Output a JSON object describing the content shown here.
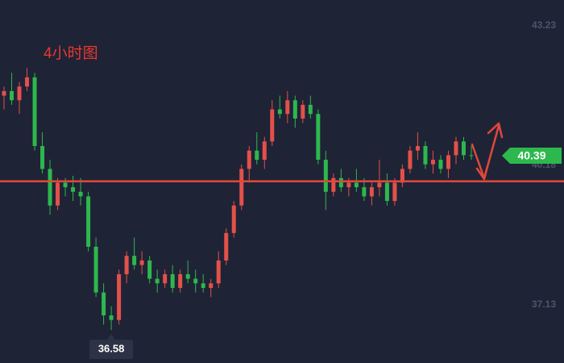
{
  "chart_data": {
    "type": "candlestick",
    "annotation": "4小时图",
    "ylim": [
      35.86,
      43.79
    ],
    "yticks": [
      43.23,
      40.18,
      37.13
    ],
    "level": 39.83,
    "level_color": "#e0483c",
    "up_color": "#e2514a",
    "down_color": "#2db84d",
    "last_price": 40.39,
    "low_label": 36.58,
    "low_index": 14,
    "open": [
      41.7,
      41.8,
      41.6,
      41.9,
      42.1,
      40.6,
      40.1,
      39.3,
      39.8,
      39.7,
      39.6,
      39.5,
      38.4,
      37.4,
      36.9,
      36.8,
      37.8,
      38.2,
      38.0,
      38.1,
      37.7,
      37.6,
      37.8,
      37.5,
      37.8,
      37.7,
      37.6,
      37.5,
      37.6,
      38.1,
      38.7,
      39.3,
      40.1,
      40.5,
      40.3,
      40.7,
      41.4,
      41.3,
      41.6,
      41.2,
      41.5,
      41.3,
      40.3,
      39.6,
      39.9,
      39.7,
      39.8,
      39.7,
      39.5,
      39.7,
      39.8,
      39.4,
      39.8,
      40.1,
      40.5,
      40.6,
      40.2,
      40.3,
      40.1,
      40.4,
      40.7,
      40.4
    ],
    "high": [
      41.9,
      42.2,
      42.0,
      42.3,
      42.2,
      40.9,
      40.3,
      39.9,
      39.9,
      39.95,
      39.9,
      39.6,
      38.6,
      37.6,
      37.1,
      37.9,
      38.3,
      38.6,
      38.3,
      38.2,
      37.9,
      37.9,
      38.0,
      37.9,
      38.1,
      37.9,
      37.8,
      37.7,
      38.3,
      38.8,
      39.4,
      40.2,
      40.6,
      40.9,
      40.8,
      41.6,
      41.7,
      41.8,
      41.7,
      41.6,
      41.7,
      41.4,
      40.5,
      40.0,
      40.1,
      39.9,
      40.1,
      39.9,
      39.8,
      40.3,
      40.0,
      39.9,
      40.2,
      40.6,
      40.9,
      40.7,
      40.5,
      40.4,
      40.5,
      40.8,
      40.8,
      40.6
    ],
    "low": [
      41.4,
      41.5,
      41.3,
      41.8,
      40.5,
      40.0,
      39.1,
      39.2,
      39.5,
      39.4,
      39.3,
      38.3,
      37.3,
      36.7,
      36.58,
      36.7,
      37.6,
      37.9,
      37.8,
      37.6,
      37.4,
      37.5,
      37.4,
      37.4,
      37.6,
      37.4,
      37.4,
      37.3,
      37.5,
      38.0,
      38.6,
      39.2,
      39.8,
      40.2,
      40.1,
      40.6,
      41.2,
      41.1,
      41.0,
      41.1,
      41.2,
      40.2,
      39.2,
      39.5,
      39.6,
      39.5,
      39.6,
      39.4,
      39.3,
      39.5,
      39.3,
      39.3,
      39.7,
      40.0,
      40.3,
      40.1,
      40.0,
      40.0,
      39.9,
      40.2,
      40.3,
      40.3
    ],
    "close": [
      41.8,
      41.6,
      41.9,
      42.1,
      40.6,
      40.1,
      39.3,
      39.8,
      39.7,
      39.6,
      39.5,
      38.4,
      37.4,
      36.9,
      36.8,
      37.8,
      38.2,
      38.0,
      38.1,
      37.7,
      37.6,
      37.8,
      37.5,
      37.8,
      37.7,
      37.6,
      37.5,
      37.6,
      38.1,
      38.7,
      39.3,
      40.1,
      40.5,
      40.3,
      40.7,
      41.4,
      41.3,
      41.6,
      41.2,
      41.5,
      41.3,
      40.3,
      39.6,
      39.9,
      39.7,
      39.8,
      39.7,
      39.5,
      39.7,
      39.8,
      39.4,
      39.8,
      40.1,
      40.5,
      40.6,
      40.2,
      40.3,
      40.1,
      40.4,
      40.7,
      40.4,
      40.39
    ]
  }
}
